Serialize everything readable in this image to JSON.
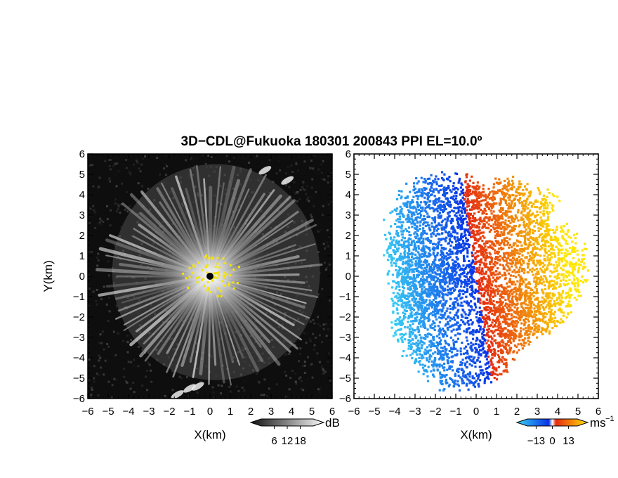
{
  "title": "3D−CDL@Fukuoka 180301 200843 PPI EL=10.0º",
  "chart_data": [
    {
      "type": "heatmap",
      "panel": "left",
      "field": "radar intensity",
      "xlabel": "X(km)",
      "ylabel": "Y(km)",
      "xlim": [
        -6,
        6
      ],
      "ylim": [
        -6,
        6
      ],
      "xticks": [
        "−6",
        "−5",
        "−4",
        "−3",
        "−2",
        "−1",
        "0",
        "1",
        "2",
        "3",
        "4",
        "5",
        "6"
      ],
      "yticks": [
        "6",
        "5",
        "4",
        "3",
        "2",
        "1",
        "0",
        "−1",
        "−2",
        "−3",
        "−4",
        "−5",
        "−6"
      ],
      "colormap": "grayscale (black to white), yellow for overflow",
      "colorbar": {
        "unit": "dB",
        "ticks": [
          "6",
          "12",
          "18"
        ],
        "range": [
          0,
          24
        ]
      },
      "background_color": "#0e0e0e",
      "overflow_color": "#f6e400"
    },
    {
      "type": "heatmap",
      "panel": "right",
      "field": "radial velocity",
      "xlabel": "X(km)",
      "xlim": [
        -6,
        6
      ],
      "ylim": [
        -6,
        6
      ],
      "xticks": [
        "−6",
        "−5",
        "−4",
        "−3",
        "−2",
        "−1",
        "0",
        "1",
        "2",
        "3",
        "4",
        "5",
        "6"
      ],
      "yticks": [
        "6",
        "5",
        "4",
        "3",
        "2",
        "1",
        "0",
        "−1",
        "−2",
        "−3",
        "−4",
        "−5",
        "−6"
      ],
      "colormap": "cyan-blue (negative) to red-yellow (positive)",
      "colorbar": {
        "unit": "ms",
        "unit_exponent": "−1",
        "ticks": [
          "−13",
          "0",
          "13"
        ],
        "range": [
          -20,
          20
        ]
      },
      "colors": {
        "neg_far": "#3ad2f5",
        "neg_near": "#0632e6",
        "pos_near": "#e42a12",
        "pos_far": "#ffe600"
      }
    }
  ]
}
